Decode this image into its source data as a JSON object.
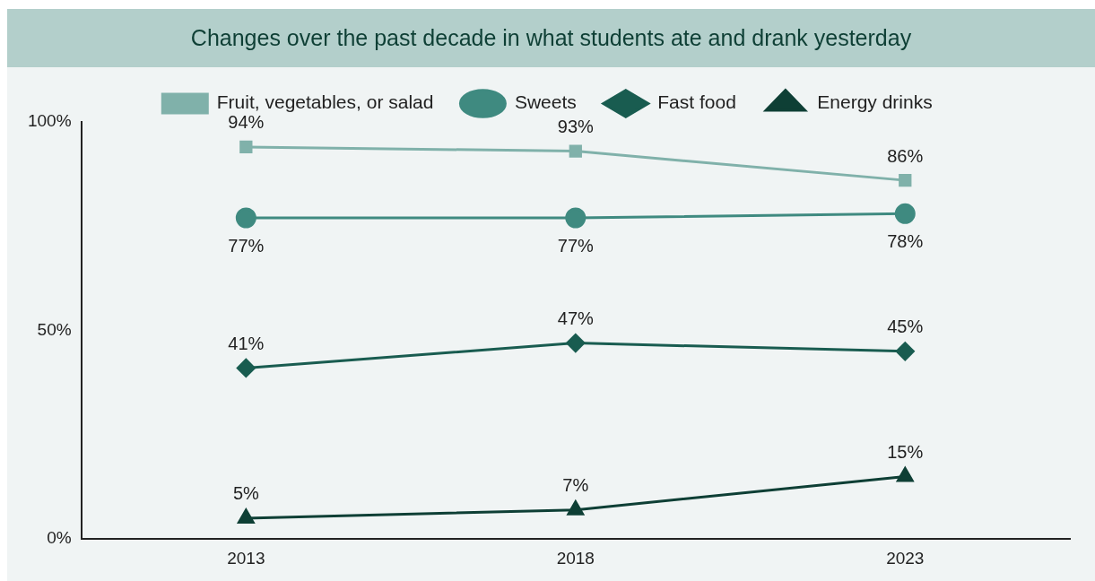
{
  "chart_data": {
    "type": "line",
    "title": "Changes over the past decade in what students ate and drank yesterday",
    "categories": [
      "2013",
      "2018",
      "2023"
    ],
    "series": [
      {
        "name": "Fruit, vegetables, or salad",
        "color": "#80b1aa",
        "marker": "square",
        "values": [
          94,
          93,
          86
        ],
        "value_labels": [
          "94%",
          "93%",
          "86%"
        ]
      },
      {
        "name": "Sweets",
        "color": "#3f8a80",
        "marker": "circle",
        "values": [
          77,
          77,
          78
        ],
        "value_labels": [
          "77%",
          "77%",
          "78%"
        ]
      },
      {
        "name": "Fast food",
        "color": "#195c50",
        "marker": "diamond",
        "values": [
          41,
          47,
          45
        ],
        "value_labels": [
          "41%",
          "47%",
          "45%"
        ]
      },
      {
        "name": "Energy drinks",
        "color": "#0e3f35",
        "marker": "triangle",
        "values": [
          5,
          7,
          15
        ],
        "value_labels": [
          "5%",
          "7%",
          "15%"
        ]
      }
    ],
    "ylim": [
      0,
      100
    ],
    "yticks": [
      {
        "value": 0,
        "label": "0%"
      },
      {
        "value": 50,
        "label": "50%"
      },
      {
        "value": 100,
        "label": "100%"
      }
    ],
    "grid": false,
    "legend": "top",
    "line_style": "solid"
  }
}
